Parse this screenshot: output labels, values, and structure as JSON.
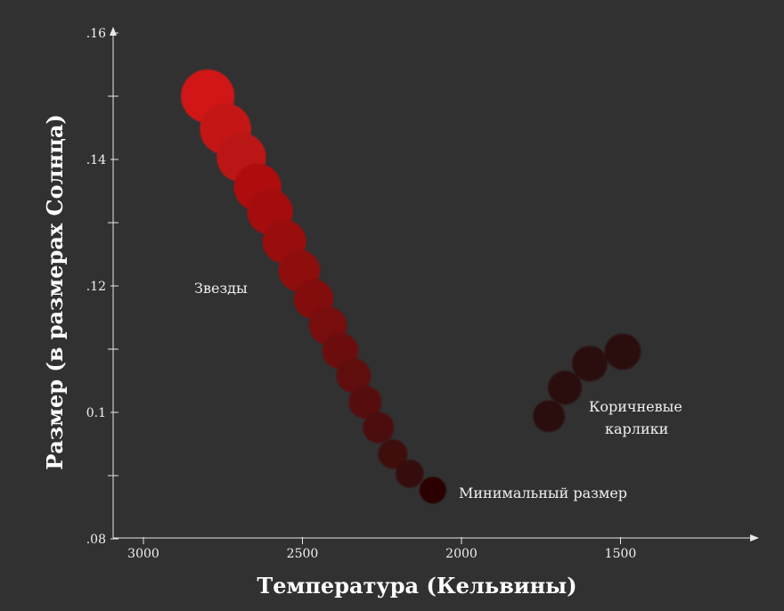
{
  "chart_data": {
    "type": "scatter",
    "title": "",
    "xlabel": "Температура (Кельвины)",
    "ylabel": "Размер (в размерах Солнца)",
    "xlim": [
      3100,
      1150
    ],
    "ylim": [
      0.08,
      0.16
    ],
    "x_reversed": true,
    "grid": false,
    "x_ticks": [
      3000,
      2500,
      2000,
      1500
    ],
    "x_tick_labels": [
      "3000",
      "2500",
      "2000",
      "1500"
    ],
    "y_ticks": [
      0.08,
      0.1,
      0.12,
      0.14,
      0.16
    ],
    "y_tick_labels": [
      ".08",
      "0.1",
      ".12",
      ".14",
      ".16"
    ],
    "y_minor_ticks": [
      0.09,
      0.11,
      0.13,
      0.15
    ],
    "series": [
      {
        "name": "Звезды",
        "color_start": "#d01414",
        "color_end": "#2a0606",
        "points": [
          {
            "x": 2798,
            "y": 0.15
          },
          {
            "x": 2742,
            "y": 0.1448
          },
          {
            "x": 2692,
            "y": 0.1403
          },
          {
            "x": 2641,
            "y": 0.1356
          },
          {
            "x": 2602,
            "y": 0.1317
          },
          {
            "x": 2557,
            "y": 0.127
          },
          {
            "x": 2510,
            "y": 0.1224
          },
          {
            "x": 2465,
            "y": 0.1179
          },
          {
            "x": 2420,
            "y": 0.1137
          },
          {
            "x": 2381,
            "y": 0.1097
          },
          {
            "x": 2339,
            "y": 0.1058
          },
          {
            "x": 2303,
            "y": 0.1016
          },
          {
            "x": 2261,
            "y": 0.0976
          },
          {
            "x": 2216,
            "y": 0.0934
          },
          {
            "x": 2163,
            "y": 0.0903
          },
          {
            "x": 2090,
            "y": 0.0877
          }
        ]
      },
      {
        "name": "Коричневые карлики",
        "color_start": "#2c0a0c",
        "color_end": "#2c0a0c",
        "points": [
          {
            "x": 1493,
            "y": 0.1096
          },
          {
            "x": 1597,
            "y": 0.1077
          },
          {
            "x": 1675,
            "y": 0.1039
          },
          {
            "x": 1725,
            "y": 0.0994
          }
        ]
      }
    ],
    "annotations": {
      "stars": "Звезды",
      "brown_dwarfs_line1": "Коричневые",
      "brown_dwarfs_line2": "карлики",
      "minimum": "Минимальный размер"
    }
  }
}
